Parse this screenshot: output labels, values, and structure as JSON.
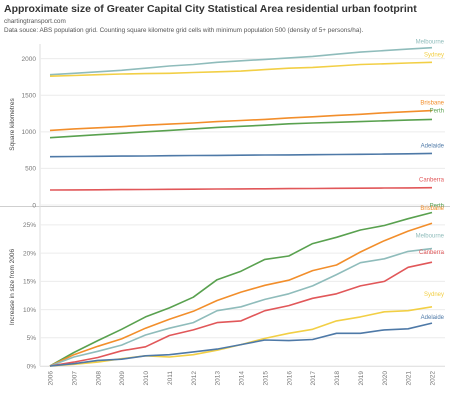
{
  "header": {
    "title": "Approximate size of Greater Capital City Statistical Area residential urban footprint",
    "source_site": "chartingtransport.com",
    "note": "Data souce: ABS population grid. Counting square kilometre grid cells with minimum population 500 (density of 5+ persons/ha)."
  },
  "chart_data": [
    {
      "type": "line",
      "ylabel": "Square kilometres",
      "ylim": [
        0,
        2200
      ],
      "yticks": [
        0,
        500,
        1000,
        1500,
        2000
      ],
      "x": [
        "2006",
        "2007",
        "2008",
        "2009",
        "2010",
        "2011",
        "2012",
        "2013",
        "2014",
        "2015",
        "2016",
        "2017",
        "2018",
        "2019",
        "2020",
        "2021",
        "2022"
      ],
      "grid": "horizontal",
      "series": [
        {
          "name": "Melbourne",
          "color": "#8fbcbb",
          "values": [
            1780,
            1800,
            1820,
            1840,
            1870,
            1900,
            1920,
            1950,
            1970,
            1990,
            2010,
            2030,
            2060,
            2090,
            2110,
            2130,
            2150
          ]
        },
        {
          "name": "Sydney",
          "color": "#f2cf45",
          "values": [
            1760,
            1770,
            1780,
            1790,
            1795,
            1800,
            1810,
            1820,
            1830,
            1850,
            1870,
            1880,
            1900,
            1920,
            1930,
            1940,
            1950
          ]
        },
        {
          "name": "Brisbane",
          "color": "#f28e2b",
          "values": [
            1020,
            1040,
            1055,
            1070,
            1090,
            1105,
            1120,
            1140,
            1155,
            1170,
            1190,
            1205,
            1225,
            1240,
            1260,
            1275,
            1290
          ]
        },
        {
          "name": "Perth",
          "color": "#59a14f",
          "values": [
            920,
            940,
            960,
            980,
            1000,
            1020,
            1040,
            1060,
            1075,
            1090,
            1110,
            1120,
            1130,
            1140,
            1150,
            1160,
            1170
          ]
        },
        {
          "name": "Adelaide",
          "color": "#4e79a7",
          "values": [
            660,
            663,
            666,
            668,
            670,
            673,
            676,
            678,
            681,
            683,
            685,
            688,
            690,
            693,
            696,
            700,
            705
          ]
        },
        {
          "name": "Canberra",
          "color": "#e15759",
          "values": [
            205,
            206,
            208,
            210,
            212,
            214,
            216,
            218,
            220,
            222,
            224,
            226,
            228,
            230,
            232,
            234,
            236
          ]
        }
      ]
    },
    {
      "type": "line",
      "ylabel": "Increase in size from 2006",
      "ylim": [
        0,
        0.28
      ],
      "yticks": [
        "0%",
        "5%",
        "10%",
        "15%",
        "20%",
        "25%"
      ],
      "ytick_values": [
        0,
        0.05,
        0.1,
        0.15,
        0.2,
        0.25
      ],
      "x": [
        "2006",
        "2007",
        "2008",
        "2009",
        "2010",
        "2011",
        "2012",
        "2013",
        "2014",
        "2015",
        "2016",
        "2017",
        "2018",
        "2019",
        "2020",
        "2021",
        "2022"
      ],
      "grid": "horizontal",
      "series": [
        {
          "name": "Perth",
          "color": "#59a14f",
          "values": [
            0,
            0.024,
            0.045,
            0.065,
            0.087,
            0.103,
            0.122,
            0.153,
            0.168,
            0.189,
            0.195,
            0.217,
            0.228,
            0.241,
            0.249,
            0.261,
            0.272
          ]
        },
        {
          "name": "Brisbane",
          "color": "#f28e2b",
          "values": [
            0,
            0.02,
            0.035,
            0.048,
            0.067,
            0.083,
            0.097,
            0.116,
            0.131,
            0.143,
            0.152,
            0.169,
            0.179,
            0.202,
            0.222,
            0.239,
            0.253
          ]
        },
        {
          "name": "Melbourne",
          "color": "#8fbcbb",
          "values": [
            0,
            0.016,
            0.026,
            0.037,
            0.055,
            0.067,
            0.077,
            0.098,
            0.105,
            0.118,
            0.128,
            0.142,
            0.162,
            0.183,
            0.19,
            0.203,
            0.208
          ]
        },
        {
          "name": "Canberra",
          "color": "#e15759",
          "values": [
            0,
            0.007,
            0.015,
            0.027,
            0.034,
            0.054,
            0.064,
            0.077,
            0.08,
            0.098,
            0.107,
            0.12,
            0.128,
            0.142,
            0.15,
            0.175,
            0.184
          ]
        },
        {
          "name": "Sydney",
          "color": "#f2cf45",
          "values": [
            0,
            0.003,
            0.007,
            0.013,
            0.018,
            0.016,
            0.02,
            0.028,
            0.038,
            0.049,
            0.058,
            0.065,
            0.08,
            0.087,
            0.096,
            0.098,
            0.105
          ]
        },
        {
          "name": "Adelaide",
          "color": "#4e79a7",
          "values": [
            0,
            0.004,
            0.01,
            0.012,
            0.018,
            0.02,
            0.025,
            0.03,
            0.038,
            0.046,
            0.045,
            0.047,
            0.058,
            0.058,
            0.064,
            0.066,
            0.076
          ]
        }
      ]
    }
  ]
}
